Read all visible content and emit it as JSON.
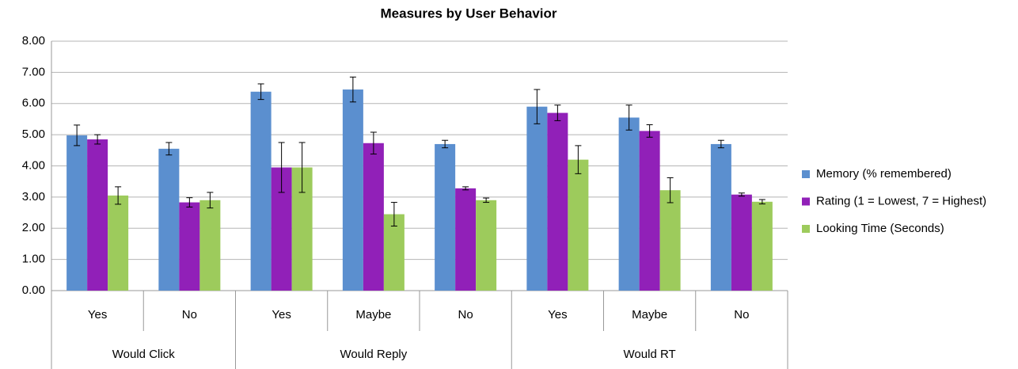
{
  "chart_data": {
    "type": "bar",
    "title": "Measures by User Behavior",
    "groups": [
      {
        "name": "Would Click",
        "categories": [
          "Yes",
          "No"
        ]
      },
      {
        "name": "Would Reply",
        "categories": [
          "Yes",
          "Maybe",
          "No"
        ]
      },
      {
        "name": "Would RT",
        "categories": [
          "Yes",
          "Maybe",
          "No"
        ]
      }
    ],
    "series": [
      {
        "name": "Memory (% remembered)",
        "color": "#5b8fcf",
        "values": [
          4.98,
          4.55,
          6.38,
          6.45,
          4.7,
          5.9,
          5.55,
          4.7
        ],
        "errors": [
          0.33,
          0.2,
          0.25,
          0.4,
          0.12,
          0.55,
          0.4,
          0.12
        ]
      },
      {
        "name": "Rating (1 = Lowest, 7 = Highest)",
        "color": "#9120b8",
        "values": [
          4.85,
          2.83,
          3.95,
          4.73,
          3.28,
          5.7,
          5.12,
          3.08
        ],
        "errors": [
          0.15,
          0.15,
          0.8,
          0.35,
          0.05,
          0.25,
          0.2,
          0.05
        ]
      },
      {
        "name": "Looking Time (Seconds)",
        "color": "#9dcb5c",
        "values": [
          3.05,
          2.9,
          3.95,
          2.45,
          2.9,
          4.2,
          3.22,
          2.85
        ],
        "errors": [
          0.28,
          0.25,
          0.8,
          0.38,
          0.07,
          0.45,
          0.4,
          0.07
        ]
      }
    ],
    "ylim": [
      0,
      8
    ],
    "yticks": [
      {
        "value": 0,
        "label": "0.00"
      },
      {
        "value": 1,
        "label": "1.00"
      },
      {
        "value": 2,
        "label": "2.00"
      },
      {
        "value": 3,
        "label": "3.00"
      },
      {
        "value": 4,
        "label": "4.00"
      },
      {
        "value": 5,
        "label": "5.00"
      },
      {
        "value": 6,
        "label": "6.00"
      },
      {
        "value": 7,
        "label": "7.00"
      },
      {
        "value": 8,
        "label": "8.00"
      }
    ],
    "grid": true,
    "legend": "right"
  }
}
